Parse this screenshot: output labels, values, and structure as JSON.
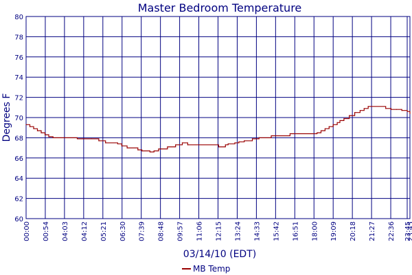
{
  "chart_data": {
    "type": "line",
    "title": "Master Bedroom Temperature",
    "xlabel": "03/14/10 (EDT)",
    "ylabel": "Degrees F",
    "ylim": [
      60,
      80
    ],
    "yticks": [
      "60",
      "62",
      "64",
      "66",
      "68",
      "70",
      "72",
      "74",
      "76",
      "78",
      "80"
    ],
    "xlim": [
      "00:00",
      "23:45"
    ],
    "xticks": [
      "00:00",
      "00:54",
      "04:03",
      "04:12",
      "05:21",
      "06:30",
      "07:39",
      "08:48",
      "09:57",
      "11:06",
      "12:15",
      "13:24",
      "14:33",
      "15:42",
      "16:51",
      "18:00",
      "19:09",
      "20:18",
      "21:27",
      "22:36",
      "23:45",
      "23:45"
    ],
    "grid": true,
    "legend_position": "bottom-center",
    "series": [
      {
        "name": "MB Temp",
        "color": "#990000",
        "step": true,
        "points": [
          [
            "00:00",
            69.3
          ],
          [
            "00:14",
            69.1
          ],
          [
            "00:28",
            68.9
          ],
          [
            "00:42",
            68.7
          ],
          [
            "00:56",
            68.5
          ],
          [
            "01:10",
            68.3
          ],
          [
            "01:24",
            68.1
          ],
          [
            "01:40",
            68.0
          ],
          [
            "03:10",
            67.9
          ],
          [
            "04:03",
            67.9
          ],
          [
            "04:30",
            67.7
          ],
          [
            "04:55",
            67.5
          ],
          [
            "05:40",
            67.4
          ],
          [
            "05:55",
            67.2
          ],
          [
            "06:15",
            67.0
          ],
          [
            "06:55",
            66.8
          ],
          [
            "07:10",
            66.7
          ],
          [
            "07:40",
            66.6
          ],
          [
            "07:55",
            66.7
          ],
          [
            "08:12",
            66.9
          ],
          [
            "08:45",
            67.1
          ],
          [
            "09:15",
            67.3
          ],
          [
            "09:40",
            67.5
          ],
          [
            "10:00",
            67.3
          ],
          [
            "11:55",
            67.1
          ],
          [
            "12:20",
            67.3
          ],
          [
            "12:30",
            67.4
          ],
          [
            "12:55",
            67.5
          ],
          [
            "13:10",
            67.6
          ],
          [
            "13:30",
            67.7
          ],
          [
            "14:00",
            67.9
          ],
          [
            "14:25",
            68.0
          ],
          [
            "15:10",
            68.2
          ],
          [
            "16:20",
            68.4
          ],
          [
            "18:00",
            68.5
          ],
          [
            "18:15",
            68.7
          ],
          [
            "18:30",
            68.9
          ],
          [
            "18:45",
            69.1
          ],
          [
            "19:00",
            69.3
          ],
          [
            "19:15",
            69.5
          ],
          [
            "19:25",
            69.7
          ],
          [
            "19:40",
            69.9
          ],
          [
            "20:00",
            70.2
          ],
          [
            "20:20",
            70.5
          ],
          [
            "20:40",
            70.7
          ],
          [
            "20:55",
            70.9
          ],
          [
            "21:10",
            71.1
          ],
          [
            "22:15",
            70.9
          ],
          [
            "22:35",
            70.8
          ],
          [
            "22:55",
            70.8
          ],
          [
            "23:15",
            70.7
          ],
          [
            "23:35",
            70.6
          ],
          [
            "23:45",
            70.4
          ]
        ]
      }
    ]
  },
  "colors": {
    "text": "#000080",
    "grid": "#000080",
    "line": "#990000",
    "background": "#ffffff"
  }
}
